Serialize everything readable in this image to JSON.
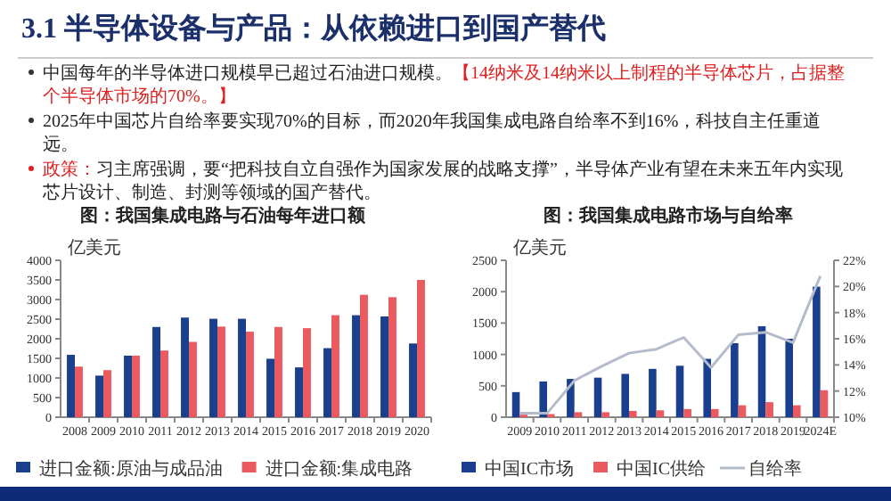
{
  "chart_data": [
    {
      "type": "other",
      "title": "3.1 半导体设备与产品：从依赖进口到国产替代",
      "annotations": [
        "中国每年的半导体进口规模早已超过石油进口规模。",
        "【14纳米及14纳米以上制程的半导体芯片，占据整个半导体市场的70%。】",
        "2025年中国芯片自给率要实现70%的目标，而2020年我国集成电路自给率不到16%，科技自主任重道远。",
        "政策：",
        "习主席强调，要“把科技自立自强作为国家发展的战略支撑”，半导体产业有望在未来五年内实现芯片设计、制造、封测等领域的国产替代。"
      ]
    },
    {
      "type": "bar",
      "title": "图：我国集成电路与石油每年进口额",
      "ylabel": "亿美元",
      "categories": [
        "2008",
        "2009",
        "2010",
        "2011",
        "2012",
        "2013",
        "2014",
        "2015",
        "2016",
        "2017",
        "2018",
        "2019",
        "2020"
      ],
      "series": [
        {
          "name": "进口金额:原油与成品油",
          "color": "#1b3f8f",
          "values": [
            1590,
            1060,
            1570,
            2300,
            2540,
            2510,
            2510,
            1490,
            1270,
            1760,
            2600,
            2570,
            1880
          ]
        },
        {
          "name": "进口金额:集成电路",
          "color": "#ea5a5e",
          "values": [
            1290,
            1200,
            1570,
            1700,
            1920,
            2310,
            2180,
            2300,
            2270,
            2600,
            3120,
            3060,
            3500
          ]
        }
      ],
      "ylim": [
        0,
        4000
      ],
      "yticks": [
        0,
        500,
        1000,
        1500,
        2000,
        2500,
        3000,
        3500,
        4000
      ],
      "legend": "bottom"
    },
    {
      "type": "bar",
      "title": "图：我国集成电路市场与自给率",
      "ylabel": "亿美元",
      "categories": [
        "2009",
        "2010",
        "2011",
        "2012",
        "2013",
        "2014",
        "2015",
        "2016",
        "2017",
        "2018",
        "2019",
        "2024E"
      ],
      "series": [
        {
          "name": "中国IC市场",
          "color": "#1b3f8f",
          "values": [
            400,
            570,
            610,
            630,
            690,
            770,
            820,
            930,
            1180,
            1450,
            1250,
            2080
          ]
        },
        {
          "name": "中国IC供给",
          "color": "#ea5a5e",
          "values": [
            40,
            50,
            80,
            80,
            100,
            110,
            130,
            130,
            190,
            240,
            190,
            430
          ]
        },
        {
          "name": "自给率",
          "type": "line",
          "axis": "y2",
          "color": "#b4bccb",
          "values": [
            10.3,
            10.3,
            12.8,
            13.9,
            14.9,
            15.2,
            16.1,
            13.8,
            16.3,
            16.5,
            15.7,
            20.8
          ]
        }
      ],
      "ylim": [
        0,
        2500
      ],
      "yticks": [
        0,
        500,
        1000,
        1500,
        2000,
        2500
      ],
      "y2lim": [
        10,
        22
      ],
      "y2ticks": [
        {
          "value": 10,
          "label": "10%"
        },
        {
          "value": 12,
          "label": "12%"
        },
        {
          "value": 14,
          "label": "14%"
        },
        {
          "value": 16,
          "label": "16%"
        },
        {
          "value": 18,
          "label": "18%"
        },
        {
          "value": 20,
          "label": "20%"
        },
        {
          "value": 22,
          "label": "22%"
        }
      ],
      "legend": "bottom"
    }
  ]
}
